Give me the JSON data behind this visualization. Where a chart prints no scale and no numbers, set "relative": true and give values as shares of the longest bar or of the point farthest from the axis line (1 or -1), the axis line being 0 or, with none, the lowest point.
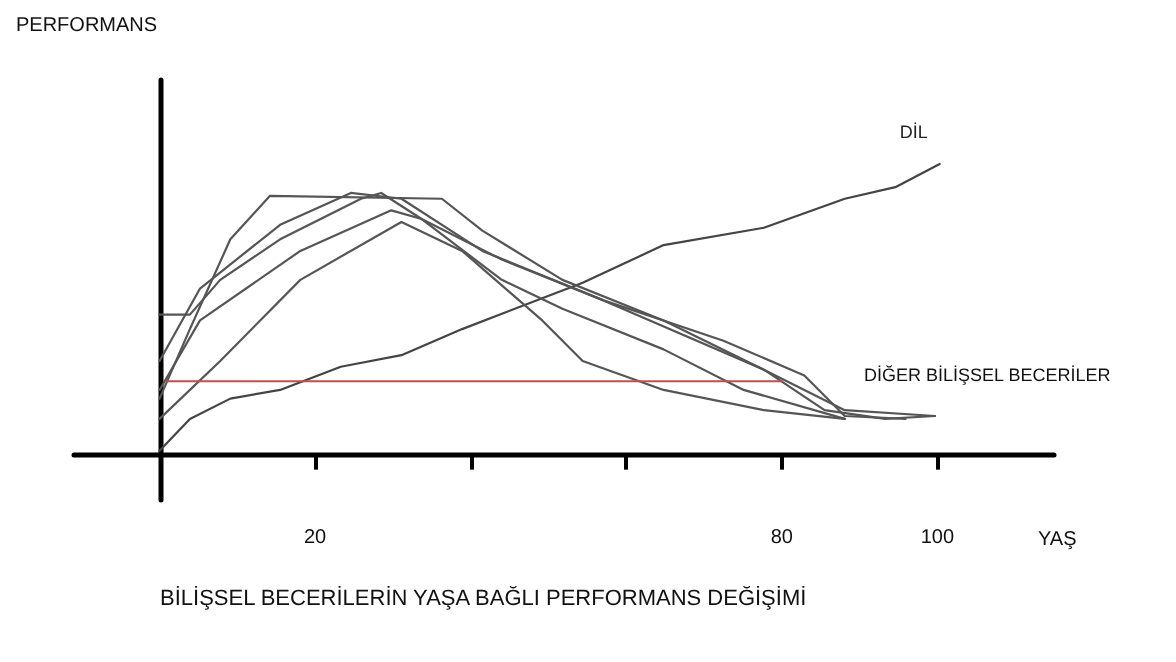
{
  "chart_data": {
    "type": "line",
    "title": "BİLİŞSEL BECERİLERİN YAŞA BAĞLI PERFORMANS DEĞİŞİMİ",
    "xlabel": "YAŞ",
    "relative": true,
    "xlim": [
      -11,
      115
    ],
    "xticks": [
      20,
      {
        "value": 40,
        "label": null
      },
      {
        "value": 60,
        "label": null
      },
      80,
      100
    ],
    "grid": false,
    "legend": false,
    "marker": "none",
    "line_style": "solid",
    "annotations": [
      "PERFORMANS",
      "DİĞER BİLİŞSEL BECERİLER"
    ],
    "series": [
      {
        "name": "DİL",
        "color": "#444444",
        "x": [
          0,
          3.9,
          9.1,
          15.5,
          23.3,
          31.1,
          38.9,
          46.6,
          54.4,
          64.8,
          77.7,
          88.1,
          94.6,
          100.3
        ],
        "values": [
          0.01,
          0.12,
          0.19,
          0.22,
          0.3,
          0.34,
          0.43,
          0.51,
          0.59,
          0.72,
          0.78,
          0.88,
          0.92,
          1.0
        ]
      },
      {
        "color": "#555555",
        "x": [
          0,
          3.9,
          9.1,
          14.2,
          36.3,
          41.5,
          51.8,
          64.8,
          77.7,
          85.5,
          93.3,
          99.7
        ],
        "values": [
          0.19,
          0.43,
          0.74,
          0.89,
          0.88,
          0.77,
          0.6,
          0.46,
          0.29,
          0.15,
          0.12,
          0.13
        ]
      },
      {
        "color": "#555555",
        "x": [
          0,
          3.9,
          7.8,
          15.5,
          25.9,
          28.5,
          33.7,
          44.0,
          51.8,
          64.8,
          75.1,
          88.1
        ],
        "values": [
          0.48,
          0.48,
          0.6,
          0.74,
          0.88,
          0.9,
          0.81,
          0.6,
          0.5,
          0.36,
          0.22,
          0.12
        ]
      },
      {
        "color": "#555555",
        "x": [
          0,
          5.2,
          15.5,
          24.6,
          31.1,
          41.5,
          57.0,
          72.5,
          82.9,
          88.1,
          95.9
        ],
        "values": [
          0.32,
          0.57,
          0.79,
          0.9,
          0.88,
          0.7,
          0.53,
          0.39,
          0.27,
          0.13,
          0.12
        ]
      },
      {
        "color": "#555555",
        "x": [
          0,
          5.2,
          18.1,
          29.8,
          33.7,
          44.0,
          57.0,
          77.7,
          88.1,
          99.7
        ],
        "values": [
          0.22,
          0.46,
          0.7,
          0.84,
          0.81,
          0.67,
          0.53,
          0.29,
          0.15,
          0.13
        ]
      },
      {
        "color": "#555555",
        "x": [
          0,
          7.8,
          18.1,
          31.1,
          38.9,
          49.2,
          54.4,
          64.8,
          77.7,
          88.1
        ],
        "values": [
          0.12,
          0.32,
          0.6,
          0.8,
          0.7,
          0.46,
          0.32,
          0.22,
          0.15,
          0.12
        ]
      },
      {
        "color": "#c0504d",
        "x": [
          1,
          80
        ],
        "values": [
          0.25,
          0.25
        ]
      }
    ]
  }
}
